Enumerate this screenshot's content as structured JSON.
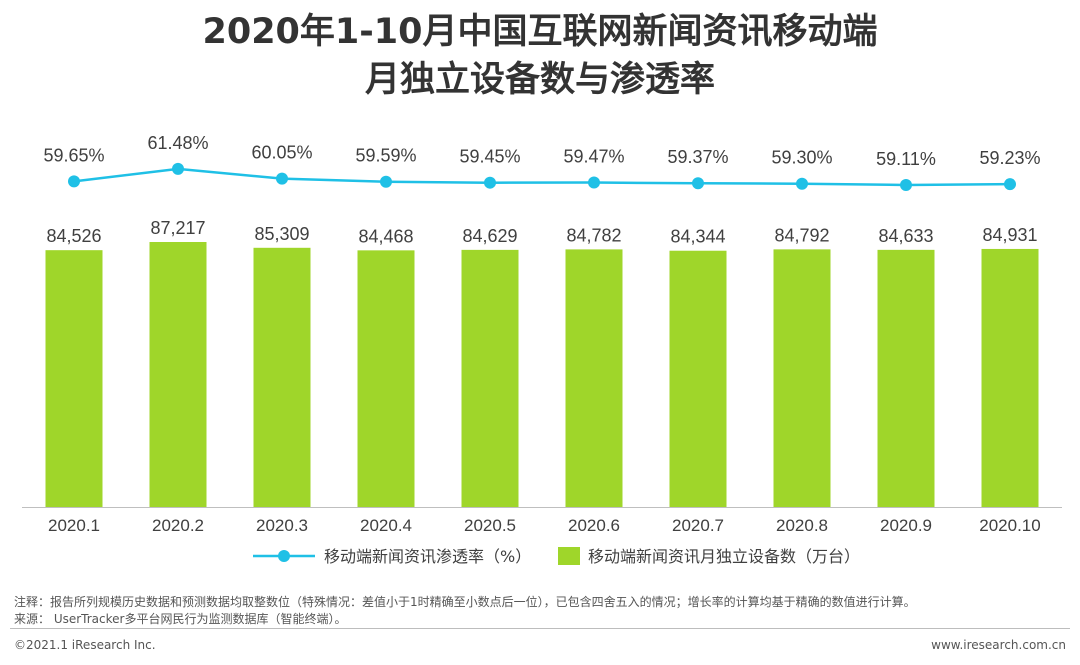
{
  "title_line1": "2020年1-10月中国互联网新闻资讯移动端",
  "title_line2": "月独立设备数与渗透率",
  "chart_data": {
    "type": "bar",
    "categories": [
      "2020.1",
      "2020.2",
      "2020.3",
      "2020.4",
      "2020.5",
      "2020.6",
      "2020.7",
      "2020.8",
      "2020.9",
      "2020.10"
    ],
    "series": [
      {
        "name": "移动端新闻资讯月独立设备数（万台）",
        "type": "bar",
        "values": [
          84526,
          87217,
          85309,
          84468,
          84629,
          84782,
          84344,
          84792,
          84633,
          84931
        ],
        "labels": [
          "84,526",
          "87,217",
          "85,309",
          "84,468",
          "84,629",
          "84,782",
          "84,344",
          "84,792",
          "84,633",
          "84,931"
        ],
        "color": "#9fd62a"
      },
      {
        "name": "移动端新闻资讯渗透率（%）",
        "type": "line",
        "values": [
          59.65,
          61.48,
          60.05,
          59.59,
          59.45,
          59.47,
          59.37,
          59.3,
          59.11,
          59.23
        ],
        "labels": [
          "59.65%",
          "61.48%",
          "60.05%",
          "59.59%",
          "59.45%",
          "59.47%",
          "59.37%",
          "59.30%",
          "59.11%",
          "59.23%"
        ],
        "color": "#1fc0e6"
      }
    ],
    "legend_position": "bottom-center",
    "grid": false
  },
  "footer": {
    "note": "注释：报告所列规模历史数据和预测数据均取整数位（特殊情况：差值小于1时精确至小数点后一位），已包含四舍五入的情况；增长率的计算均基于精确的数值进行计算。",
    "source": "来源： UserTracker多平台网民行为监测数据库（智能终端）。",
    "copyright": "©2021.1 iResearch Inc.",
    "website": "www.iresearch.com.cn"
  }
}
